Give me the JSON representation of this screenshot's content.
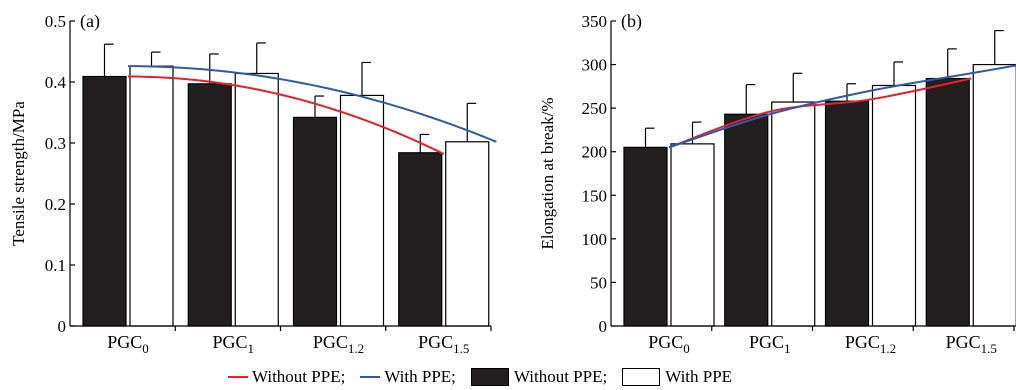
{
  "chart_data": [
    {
      "type": "bar",
      "panel_label": "(a)",
      "ylabel": "Tensile strength/MPa",
      "ylim": [
        0,
        0.5
      ],
      "yticks": [
        "0",
        "0.1",
        "0.2",
        "0.3",
        "0.4",
        "0.5"
      ],
      "ytick_values": [
        0,
        0.1,
        0.2,
        0.3,
        0.4,
        0.5
      ],
      "categories": [
        {
          "base": "PGC",
          "sub": "0"
        },
        {
          "base": "PGC",
          "sub": "1"
        },
        {
          "base": "PGC",
          "sub": "1.2"
        },
        {
          "base": "PGC",
          "sub": "1.5"
        }
      ],
      "series": [
        {
          "name": "Without PPE",
          "values": [
            0.409,
            0.397,
            0.342,
            0.284
          ],
          "errors": [
            0.053,
            0.049,
            0.035,
            0.03
          ],
          "fill": "#231f20"
        },
        {
          "name": "With PPE",
          "values": [
            0.426,
            0.414,
            0.378,
            0.302
          ],
          "errors": [
            0.023,
            0.05,
            0.054,
            0.063
          ],
          "fill": "#ffffff"
        }
      ],
      "trend_lines": [
        {
          "name": "Without PPE",
          "color": "#e8202a",
          "y_start": 0.409,
          "y_end": 0.282,
          "x_start": 0,
          "x_end": 3
        },
        {
          "name": "With PPE",
          "color": "#2e5aa8",
          "y_start": 0.426,
          "y_end": 0.302,
          "x_start": 0,
          "x_end": 3.5
        }
      ]
    },
    {
      "type": "bar",
      "panel_label": "(b)",
      "ylabel": "Elongation at break/%",
      "ylim": [
        0,
        350
      ],
      "yticks": [
        "0",
        "50",
        "100",
        "150",
        "200",
        "250",
        "300",
        "350"
      ],
      "ytick_values": [
        0,
        50,
        100,
        150,
        200,
        250,
        300,
        350
      ],
      "categories": [
        {
          "base": "PGC",
          "sub": "0"
        },
        {
          "base": "PGC",
          "sub": "1"
        },
        {
          "base": "PGC",
          "sub": "1.2"
        },
        {
          "base": "PGC",
          "sub": "1.5"
        }
      ],
      "series": [
        {
          "name": "Without PPE",
          "values": [
            205,
            243,
            258,
            284
          ],
          "errors": [
            22,
            34,
            20,
            34
          ],
          "fill": "#231f20"
        },
        {
          "name": "With PPE",
          "values": [
            209,
            257,
            276,
            300
          ],
          "errors": [
            25,
            33,
            27,
            39
          ],
          "fill": "#ffffff"
        }
      ],
      "trend_lines": [
        {
          "name": "Without PPE",
          "color": "#e8202a",
          "points": [
            [
              0,
              205
            ],
            [
              1,
              246
            ],
            [
              2,
              260
            ],
            [
              3,
              284
            ]
          ]
        },
        {
          "name": "With PPE",
          "color": "#2e5aa8",
          "points": [
            [
              0,
              205
            ],
            [
              1,
              243
            ],
            [
              2,
              270
            ],
            [
              3,
              290
            ],
            [
              3.5,
              300
            ]
          ]
        }
      ]
    }
  ],
  "legend": [
    {
      "label": "Without PPE;",
      "kind": "line",
      "color": "#e8202a"
    },
    {
      "label": "With PPE;",
      "kind": "line",
      "color": "#2e5aa8"
    },
    {
      "label": "Without PPE;",
      "kind": "box",
      "color": "#231f20"
    },
    {
      "label": "With PPE",
      "kind": "box",
      "color": "#ffffff"
    }
  ]
}
